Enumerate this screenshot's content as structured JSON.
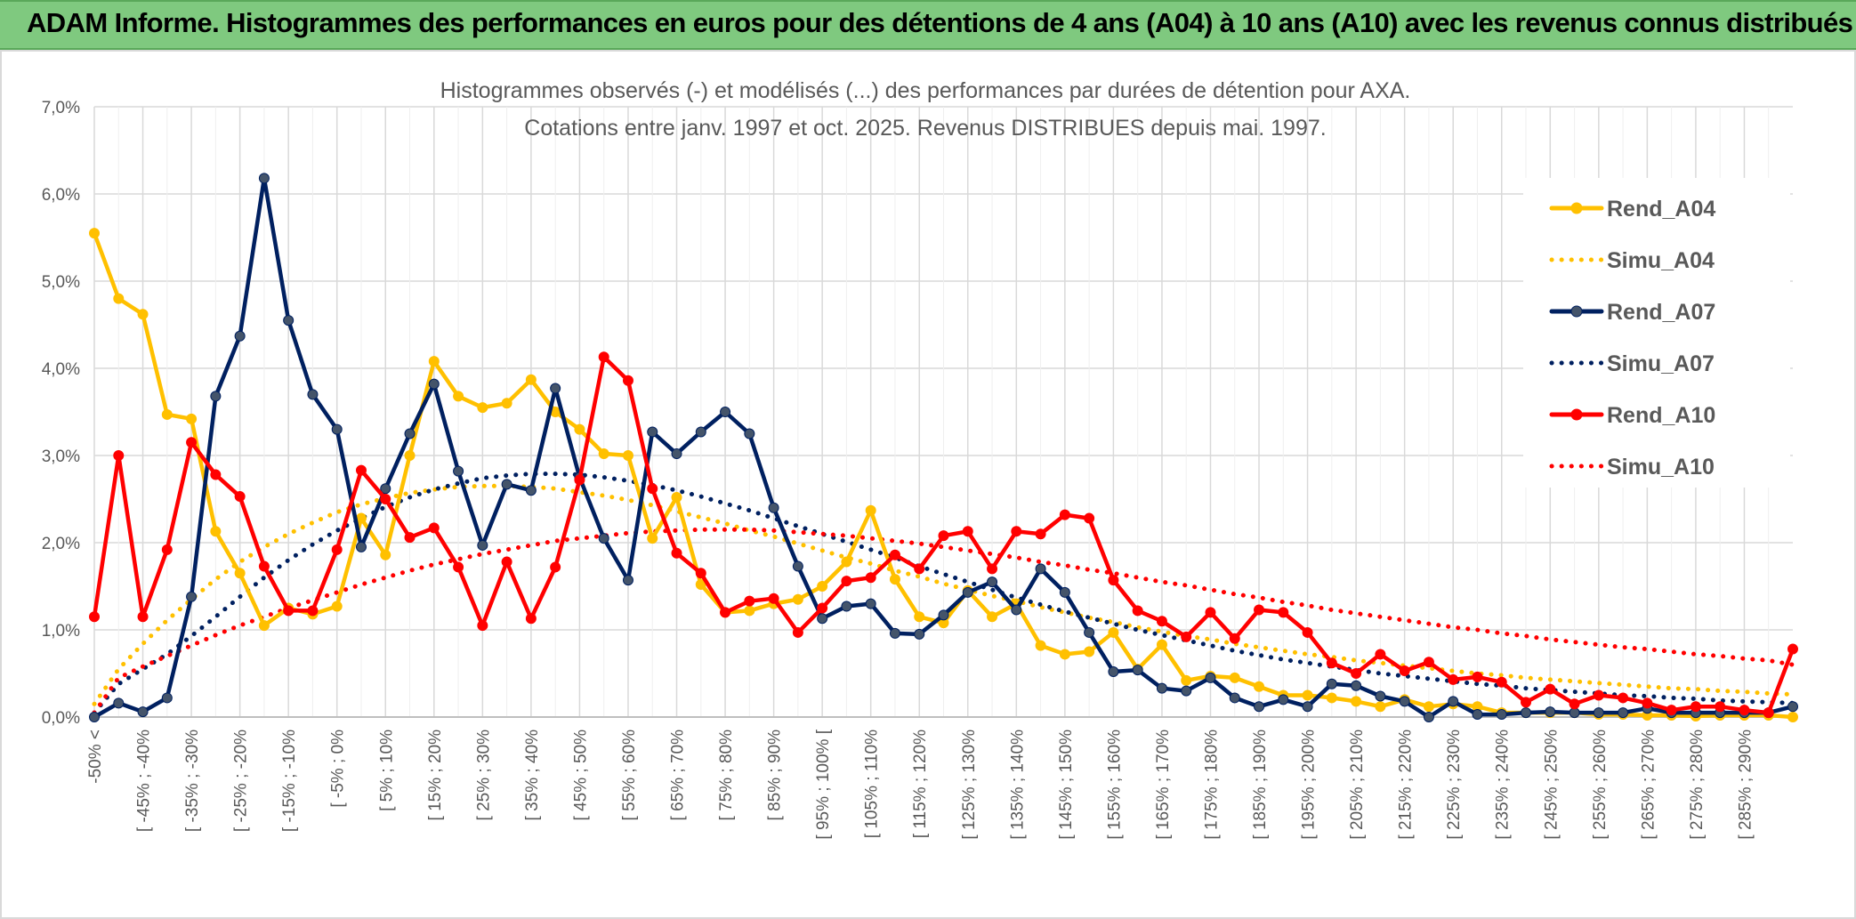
{
  "header": {
    "title": "ADAM Informe. Histogrammes des performances en euros pour des détentions de 4 ans (A04) à 10 ans (A10) avec les revenus connus distribués"
  },
  "colors": {
    "header_bg": "#7fc97f",
    "A04": "#ffc000",
    "A07": "#002060",
    "A10": "#ff0000",
    "grid": "#d9d9d9"
  },
  "chart_data": {
    "type": "line",
    "title_lines": [
      "Histogrammes observés (-) et modélisés (...) des performances par durées de détention pour AXA.",
      "Cotations entre janv. 1997 et oct. 2025. Revenus DISTRIBUES depuis mai. 1997."
    ],
    "y_ticks": [
      "0,0%",
      "1,0%",
      "2,0%",
      "3,0%",
      "4,0%",
      "5,0%",
      "6,0%",
      "7,0%"
    ],
    "ylim": [
      0,
      7
    ],
    "grid": true,
    "legend_position": "right",
    "x_tick_labels": [
      "-50% <",
      "[ -45% ; -40%",
      "[ -35% ; -30%",
      "[ -25% ; -20%",
      "[ -15% ; -10%",
      "[ -5% ; 0%",
      "[ 5% ; 10%",
      "[ 15% ; 20%",
      "[ 25% ; 30%",
      "[ 35% ; 40%",
      "[ 45% ; 50%",
      "[ 55% ; 60%",
      "[ 65% ; 70%",
      "[ 75% ; 80%",
      "[ 85% ; 90%",
      "[ 95% ; 100% [",
      "[ 105% ; 110%",
      "[ 115% ; 120%",
      "[ 125% ; 130%",
      "[ 135% ; 140%",
      "[ 145% ; 150%",
      "[ 155% ; 160%",
      "[ 165% ; 170%",
      "[ 175% ; 180%",
      "[ 185% ; 190%",
      "[ 195% ; 200%",
      "[ 205% ; 210%",
      "[ 215% ; 220%",
      "[ 225% ; 230%",
      "[ 235% ; 240%",
      "[ 245% ; 250%",
      "[ 255% ; 260%",
      "[ 265% ; 270%",
      "[ 275% ; 280%",
      "[ 285% ; 290%"
    ],
    "series": [
      {
        "name": "Rend_A04",
        "style": "solid-markers",
        "color": "#ffc000",
        "values": [
          5.55,
          4.8,
          4.62,
          3.47,
          3.42,
          2.13,
          1.65,
          1.05,
          1.25,
          1.18,
          1.27,
          2.28,
          1.86,
          3.0,
          4.08,
          3.68,
          3.55,
          3.6,
          3.87,
          3.5,
          3.3,
          3.02,
          3.0,
          2.05,
          2.52,
          1.52,
          1.2,
          1.22,
          1.3,
          1.35,
          1.5,
          1.78,
          2.37,
          1.58,
          1.15,
          1.08,
          1.45,
          1.15,
          1.3,
          0.82,
          0.72,
          0.75,
          0.97,
          0.55,
          0.83,
          0.42,
          0.47,
          0.45,
          0.35,
          0.25,
          0.25,
          0.22,
          0.18,
          0.12,
          0.2,
          0.12,
          0.15,
          0.12,
          0.05,
          0.05,
          0.05,
          0.05,
          0.03,
          0.03,
          0.02,
          0.02,
          0.01,
          0.02,
          0.02,
          0.02,
          0.0
        ]
      },
      {
        "name": "Simu_A04",
        "style": "dotted",
        "color": "#ffc000",
        "values": [
          0.15,
          0.55,
          0.84,
          1.11,
          1.35,
          1.58,
          1.78,
          1.95,
          2.1,
          2.23,
          2.35,
          2.44,
          2.51,
          2.57,
          2.61,
          2.64,
          2.65,
          2.65,
          2.64,
          2.62,
          2.58,
          2.54,
          2.49,
          2.43,
          2.36,
          2.29,
          2.22,
          2.14,
          2.07,
          1.99,
          1.91,
          1.83,
          1.76,
          1.68,
          1.61,
          1.53,
          1.46,
          1.39,
          1.33,
          1.26,
          1.2,
          1.14,
          1.09,
          1.03,
          0.98,
          0.93,
          0.89,
          0.84,
          0.8,
          0.76,
          0.72,
          0.69,
          0.65,
          0.62,
          0.59,
          0.56,
          0.53,
          0.5,
          0.48,
          0.45,
          0.43,
          0.41,
          0.39,
          0.37,
          0.35,
          0.33,
          0.32,
          0.3,
          0.29,
          0.27,
          0.26
        ]
      },
      {
        "name": "Rend_A07",
        "style": "solid-markers",
        "color": "#002060",
        "values": [
          0.0,
          0.16,
          0.06,
          0.22,
          1.38,
          3.68,
          4.37,
          6.18,
          4.55,
          3.7,
          3.3,
          1.95,
          2.62,
          3.25,
          3.82,
          2.82,
          1.97,
          2.67,
          2.6,
          3.77,
          2.75,
          2.05,
          1.57,
          3.27,
          3.02,
          3.27,
          3.5,
          3.25,
          2.4,
          1.73,
          1.13,
          1.27,
          1.3,
          0.96,
          0.95,
          1.17,
          1.43,
          1.55,
          1.23,
          1.7,
          1.43,
          0.97,
          0.52,
          0.54,
          0.33,
          0.3,
          0.45,
          0.22,
          0.12,
          0.2,
          0.12,
          0.38,
          0.36,
          0.24,
          0.18,
          0.0,
          0.18,
          0.03,
          0.03,
          0.05,
          0.06,
          0.05,
          0.05,
          0.05,
          0.1,
          0.05,
          0.05,
          0.05,
          0.05,
          0.05,
          0.12
        ]
      },
      {
        "name": "Simu_A07",
        "style": "dotted",
        "color": "#002060",
        "values": [
          0.05,
          0.38,
          0.55,
          0.72,
          0.93,
          1.15,
          1.38,
          1.6,
          1.8,
          1.98,
          2.14,
          2.28,
          2.41,
          2.52,
          2.61,
          2.68,
          2.74,
          2.77,
          2.79,
          2.79,
          2.78,
          2.75,
          2.71,
          2.66,
          2.6,
          2.53,
          2.45,
          2.37,
          2.28,
          2.19,
          2.1,
          2.01,
          1.92,
          1.83,
          1.73,
          1.64,
          1.55,
          1.46,
          1.37,
          1.29,
          1.21,
          1.14,
          1.07,
          1.0,
          0.94,
          0.88,
          0.82,
          0.76,
          0.71,
          0.66,
          0.62,
          0.58,
          0.54,
          0.5,
          0.47,
          0.44,
          0.41,
          0.38,
          0.36,
          0.33,
          0.31,
          0.29,
          0.27,
          0.25,
          0.24,
          0.22,
          0.21,
          0.19,
          0.18,
          0.17,
          0.16
        ]
      },
      {
        "name": "Rend_A10",
        "style": "solid-markers",
        "color": "#ff0000",
        "values": [
          1.15,
          3.0,
          1.15,
          1.92,
          3.15,
          2.78,
          2.53,
          1.73,
          1.22,
          1.22,
          1.92,
          2.83,
          2.5,
          2.06,
          2.17,
          1.72,
          1.05,
          1.78,
          1.13,
          1.72,
          2.72,
          4.13,
          3.86,
          2.62,
          1.88,
          1.65,
          1.2,
          1.33,
          1.36,
          0.97,
          1.25,
          1.56,
          1.6,
          1.86,
          1.7,
          2.08,
          2.13,
          1.7,
          2.13,
          2.1,
          2.32,
          2.28,
          1.57,
          1.22,
          1.1,
          0.92,
          1.2,
          0.9,
          1.23,
          1.2,
          0.97,
          0.62,
          0.5,
          0.72,
          0.53,
          0.63,
          0.43,
          0.46,
          0.4,
          0.17,
          0.32,
          0.15,
          0.25,
          0.22,
          0.16,
          0.08,
          0.12,
          0.12,
          0.08,
          0.05,
          0.78
        ]
      },
      {
        "name": "Simu_A10",
        "style": "dotted",
        "color": "#ff0000",
        "values": [
          0.05,
          0.45,
          0.58,
          0.7,
          0.82,
          0.94,
          1.05,
          1.15,
          1.25,
          1.34,
          1.43,
          1.52,
          1.6,
          1.68,
          1.75,
          1.81,
          1.87,
          1.92,
          1.97,
          2.02,
          2.05,
          2.08,
          2.11,
          2.13,
          2.14,
          2.15,
          2.15,
          2.15,
          2.14,
          2.12,
          2.1,
          2.08,
          2.05,
          2.02,
          1.99,
          1.95,
          1.91,
          1.87,
          1.83,
          1.78,
          1.74,
          1.69,
          1.65,
          1.6,
          1.55,
          1.51,
          1.46,
          1.41,
          1.37,
          1.32,
          1.28,
          1.23,
          1.19,
          1.15,
          1.11,
          1.07,
          1.03,
          1.0,
          0.96,
          0.93,
          0.89,
          0.86,
          0.83,
          0.8,
          0.78,
          0.75,
          0.72,
          0.7,
          0.67,
          0.65,
          0.6
        ]
      }
    ]
  }
}
